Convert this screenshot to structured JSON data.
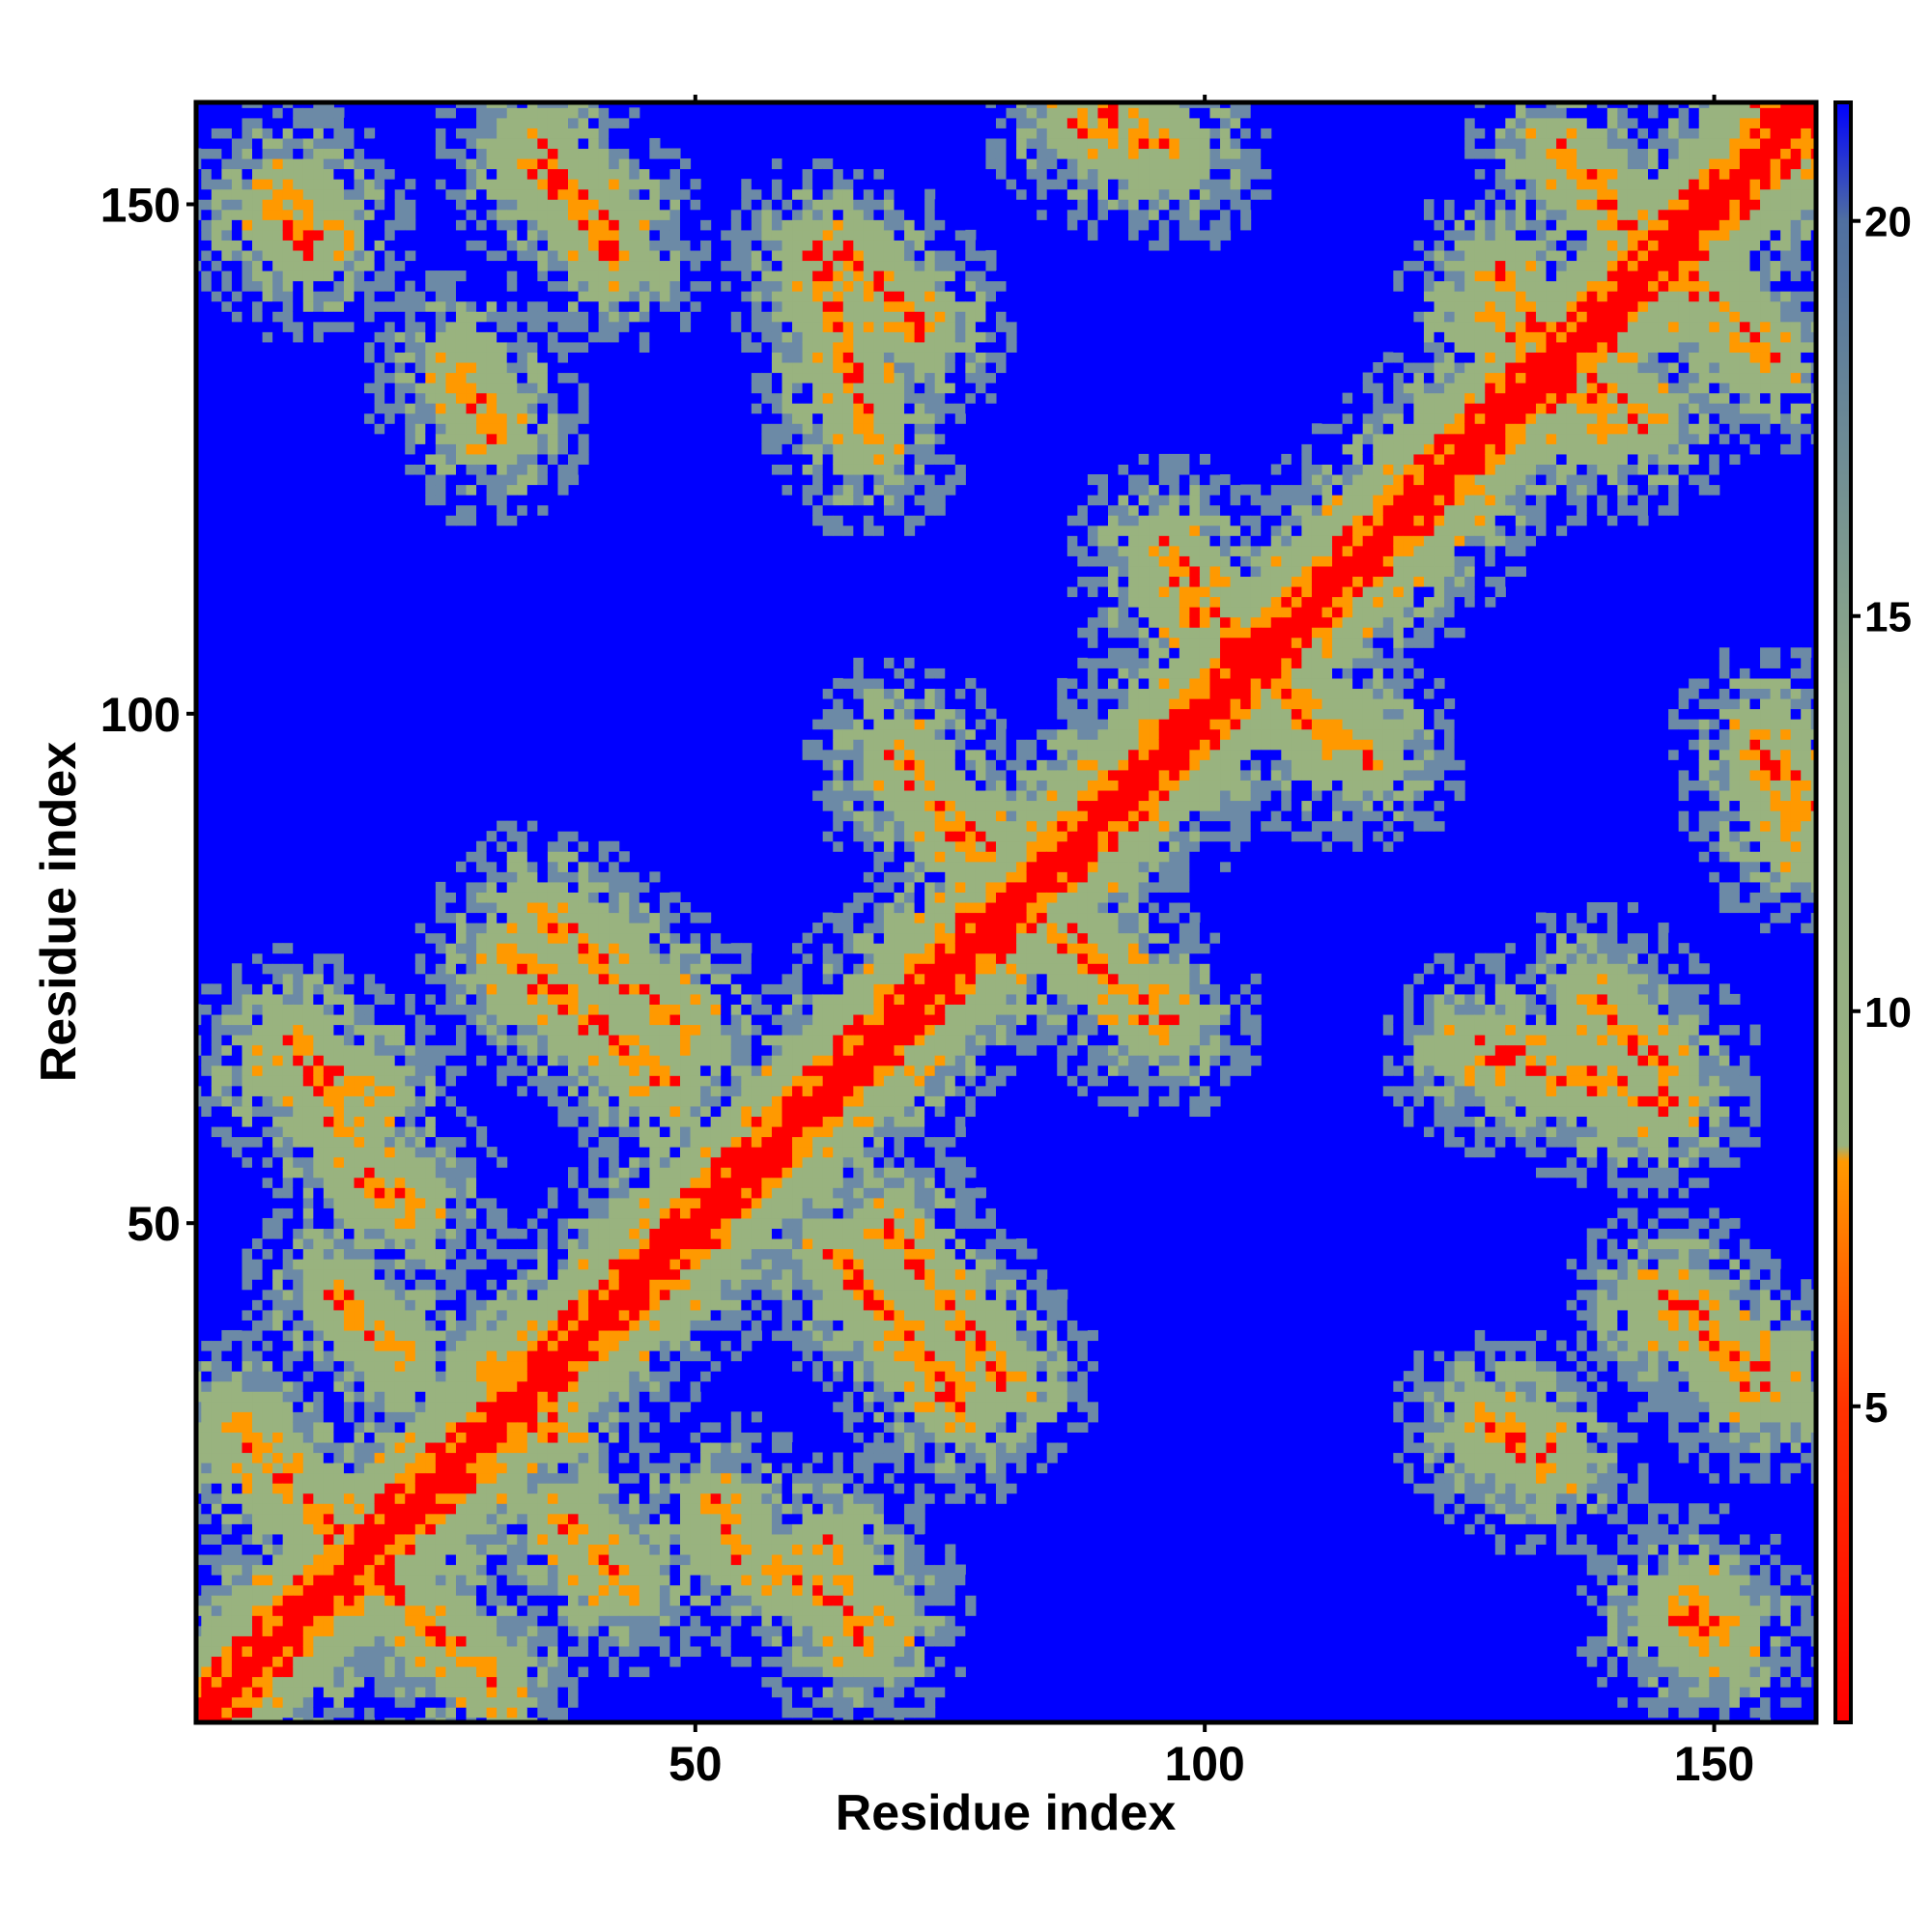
{
  "chart_data": {
    "type": "heatmap",
    "title": "",
    "xlabel": "Residue index",
    "ylabel": "Residue index",
    "n_residues": 160,
    "xlim": [
      1,
      160
    ],
    "ylim": [
      1,
      160
    ],
    "x_ticks": [
      50,
      100,
      150
    ],
    "y_ticks": [
      50,
      100,
      150
    ],
    "colorbar": {
      "ticks": [
        5,
        10,
        15,
        20
      ],
      "range": [
        1,
        21.5
      ],
      "stops": [
        {
          "value": 1,
          "color": "#ff0000"
        },
        {
          "value": 5,
          "color": "#ff3300"
        },
        {
          "value": 8.1,
          "color": "#ff9900"
        },
        {
          "value": 8.3,
          "color": "#99b37f"
        },
        {
          "value": 14,
          "color": "#8faa88"
        },
        {
          "value": 20,
          "color": "#4f6fa0"
        },
        {
          "value": 21.5,
          "color": "#0000ff"
        }
      ]
    },
    "colors": {
      "diagonal": "#ff0000",
      "contact_near": "#ff9900",
      "contact_mid": "#99b37f",
      "contact_far": "#6c8aa6",
      "background": "#0000ff"
    },
    "description_cutoff": 20,
    "contact_bands": [
      {
        "from": [
          15,
          43
        ],
        "to": [
          21,
          37
        ]
      },
      {
        "from": [
          20,
          14
        ],
        "to": [
          30,
          5
        ]
      },
      {
        "from": [
          32,
          76
        ],
        "to": [
          47,
          64
        ]
      },
      {
        "from": [
          34,
          33
        ],
        "to": [
          36,
          30
        ]
      },
      {
        "from": [
          52,
          22
        ],
        "to": [
          53,
          21
        ]
      },
      {
        "from": [
          58,
          16
        ],
        "to": [
          68,
          11
        ]
      },
      {
        "from": [
          69,
          49
        ],
        "to": [
          80,
          35
        ]
      },
      {
        "from": [
          87,
          78
        ],
        "to": [
          95,
          70
        ]
      },
      {
        "from": [
          70,
          96
        ],
        "to": [
          77,
          87
        ]
      },
      {
        "from": [
          97,
          112
        ],
        "to": [
          116,
          96
        ]
      },
      {
        "from": [
          9,
          66
        ],
        "to": [
          18,
          63
        ]
      },
      {
        "from": [
          18,
          54
        ],
        "to": [
          19,
          53
        ]
      },
      {
        "from": [
          10,
          151
        ],
        "to": [
          13,
          148
        ]
      },
      {
        "from": [
          34,
          154
        ],
        "to": [
          42,
          147
        ]
      },
      {
        "from": [
          27,
          133
        ],
        "to": [
          30,
          128
        ]
      },
      {
        "from": [
          65,
          145
        ],
        "to": [
          72,
          138
        ]
      },
      {
        "from": [
          90,
          160
        ],
        "to": [
          97,
          155
        ]
      },
      {
        "from": [
          129,
          143
        ],
        "to": [
          139,
          128
        ]
      },
      {
        "from": [
          142,
          148
        ],
        "to": [
          155,
          135
        ]
      },
      {
        "from": [
          155,
          160
        ],
        "to": [
          158,
          157
        ]
      },
      {
        "from": [
          127,
          67
        ],
        "to": [
          145,
          62
        ]
      },
      {
        "from": [
          145,
          42
        ],
        "to": [
          156,
          34
        ]
      },
      {
        "from": [
          129,
          30
        ],
        "to": [
          134,
          27
        ]
      },
      {
        "from": [
          146,
          12
        ],
        "to": [
          149,
          9
        ]
      },
      {
        "from": [
          155,
          96
        ],
        "to": [
          158,
          88
        ]
      }
    ]
  }
}
